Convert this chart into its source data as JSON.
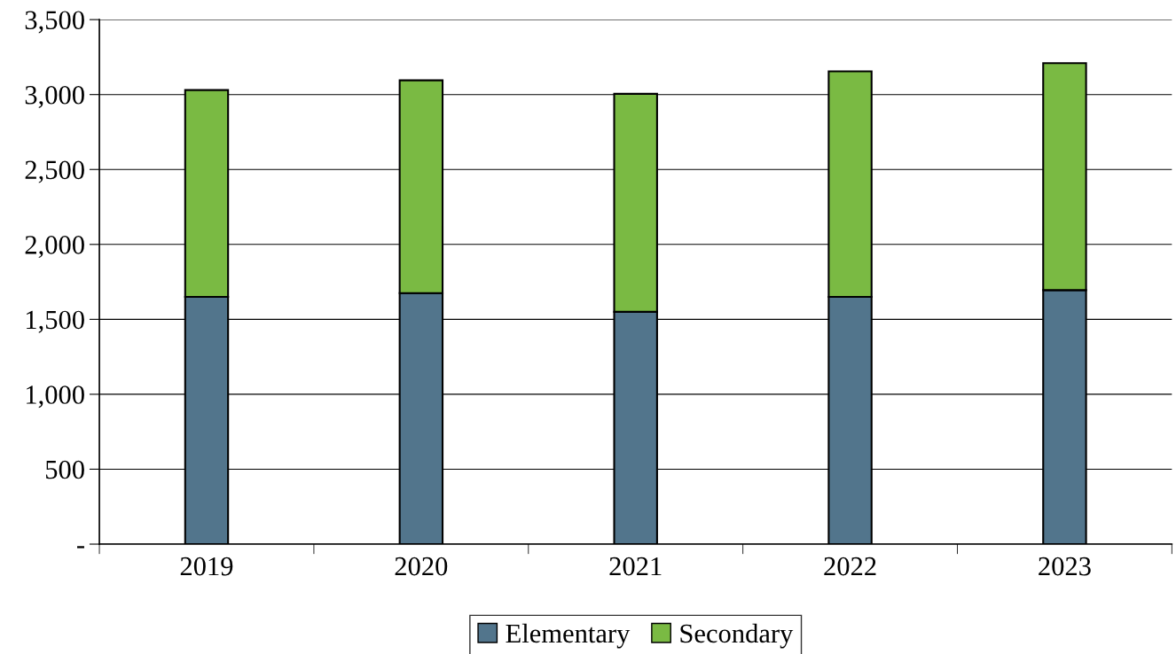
{
  "chart_data": {
    "type": "bar",
    "stacked": true,
    "categories": [
      "2019",
      "2020",
      "2021",
      "2022",
      "2023"
    ],
    "series": [
      {
        "name": "Elementary",
        "color": "#52758c",
        "values": [
          1650,
          1675,
          1550,
          1650,
          1695
        ]
      },
      {
        "name": "Secondary",
        "color": "#7aba43",
        "values": [
          1380,
          1420,
          1455,
          1505,
          1515
        ]
      }
    ],
    "ylim": [
      0,
      3500
    ],
    "yticks": [
      {
        "value": 0,
        "label": "-"
      },
      {
        "value": 500,
        "label": "500"
      },
      {
        "value": 1000,
        "label": "1,000"
      },
      {
        "value": 1500,
        "label": "1,500"
      },
      {
        "value": 2000,
        "label": "2,000"
      },
      {
        "value": 2500,
        "label": "2,500"
      },
      {
        "value": 3000,
        "label": "3,000"
      },
      {
        "value": 3500,
        "label": "3,500"
      }
    ],
    "grid": "y",
    "legend": "bottom"
  }
}
